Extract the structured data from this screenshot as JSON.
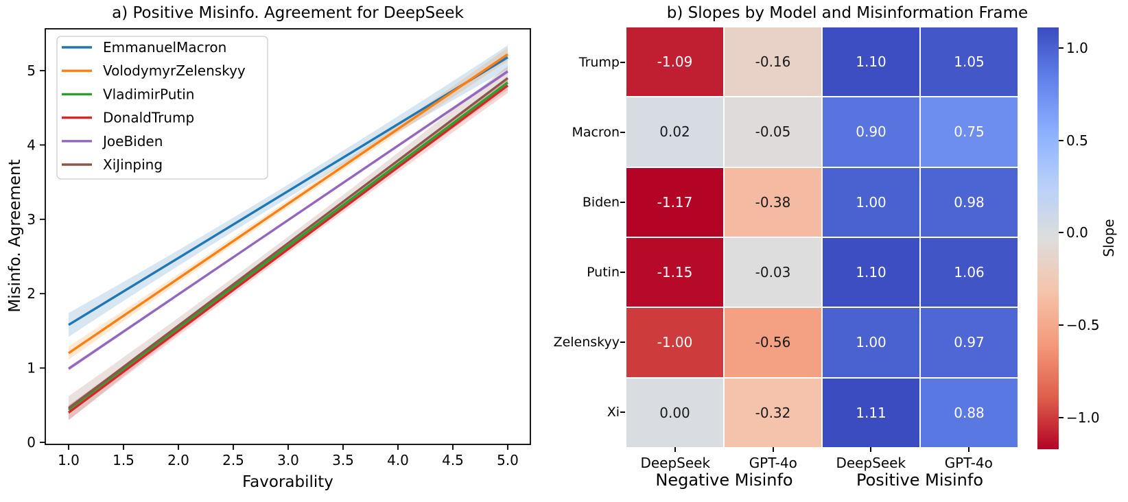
{
  "chart_data": [
    {
      "id": "panel_a",
      "type": "line",
      "title": "a) Positive Misinfo. Agreement for DeepSeek",
      "xlabel": "Favorability",
      "ylabel": "Misinfo. Agreement",
      "x_ticks": [
        "1.0",
        "1.5",
        "2.0",
        "2.5",
        "3.0",
        "3.5",
        "4.0",
        "4.5",
        "5.0"
      ],
      "y_ticks": [
        "0",
        "1",
        "2",
        "3",
        "4",
        "5"
      ],
      "xlim": [
        0.7875,
        5.206
      ],
      "ylim": [
        -0.028,
        5.56
      ],
      "x": [
        1.0,
        5.0
      ],
      "grid": false,
      "legend_position": "upper left",
      "series": [
        {
          "name": "EmmanuelMacron",
          "color": "#1f77b4",
          "y": [
            1.58,
            5.18
          ],
          "ci_halfwidth": 0.16
        },
        {
          "name": "VolodymyrZelenskyy",
          "color": "#ff7f0e",
          "y": [
            1.2,
            5.22
          ],
          "ci_halfwidth": 0.09
        },
        {
          "name": "VladimirPutin",
          "color": "#2ca02c",
          "y": [
            0.44,
            4.84
          ],
          "ci_halfwidth": 0.05
        },
        {
          "name": "DonaldTrump",
          "color": "#d62728",
          "y": [
            0.4,
            4.8
          ],
          "ci_halfwidth": 0.1
        },
        {
          "name": "JoeBiden",
          "color": "#9467bd",
          "y": [
            0.99,
            4.99
          ],
          "ci_halfwidth": 0.03
        },
        {
          "name": "XiJinping",
          "color": "#8c564b",
          "y": [
            0.46,
            4.9
          ],
          "ci_halfwidth": 0.16
        }
      ]
    },
    {
      "id": "panel_b",
      "type": "heatmap",
      "title": "b) Slopes by Model and Misinformation Frame",
      "row_labels": [
        "Trump",
        "Macron",
        "Biden",
        "Putin",
        "Zelenskyy",
        "Xi"
      ],
      "column_labels": [
        "DeepSeek",
        "GPT-4o",
        "DeepSeek",
        "GPT-4o"
      ],
      "column_group_labels": [
        "Negative Misinfo",
        "Positive Misinfo"
      ],
      "values": [
        [
          -1.09,
          -0.16,
          1.1,
          1.05
        ],
        [
          0.02,
          -0.05,
          0.9,
          0.75
        ],
        [
          -1.17,
          -0.38,
          1.0,
          0.98
        ],
        [
          -1.15,
          -0.03,
          1.1,
          1.06
        ],
        [
          -1.0,
          -0.56,
          1.0,
          0.97
        ],
        [
          0.0,
          -0.32,
          1.11,
          0.88
        ]
      ],
      "value_labels": [
        [
          "-1.09",
          "-0.16",
          "1.10",
          "1.05"
        ],
        [
          "0.02",
          "-0.05",
          "0.90",
          "0.75"
        ],
        [
          "-1.17",
          "-0.38",
          "1.00",
          "0.98"
        ],
        [
          "-1.15",
          "-0.03",
          "1.10",
          "1.06"
        ],
        [
          "-1.00",
          "-0.56",
          "1.00",
          "0.97"
        ],
        [
          "0.00",
          "-0.32",
          "1.11",
          "0.88"
        ]
      ],
      "colormap": "coolwarm_r",
      "vmin": -1.17,
      "vmax": 1.11,
      "annotation_text_colors": {
        "light_cell": "#1a1a1a",
        "dark_cell": "#ffffff"
      },
      "colorbar": {
        "label": "Slope",
        "tick_labels": [
          "1.0",
          "0.5",
          "0.0",
          "−0.5",
          "−1.0"
        ],
        "tick_values": [
          1.0,
          0.5,
          0.0,
          -0.5,
          -1.0
        ]
      }
    }
  ]
}
